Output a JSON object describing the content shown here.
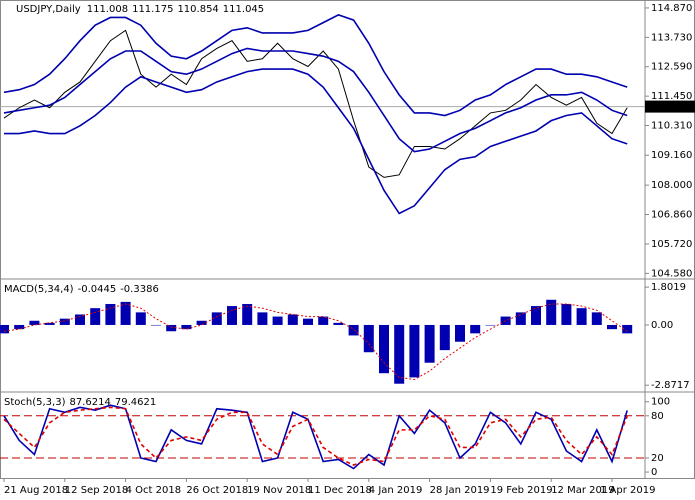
{
  "chart_data": [
    {
      "type": "line",
      "title": "USDJPY,Daily",
      "ohlc": [
        111.008,
        111.175,
        110.854,
        111.045
      ],
      "last_price": 111.045,
      "ylim": [
        104.4,
        115.1
      ],
      "yticks": [
        {
          "value": 114.87,
          "label": "114.870"
        },
        {
          "value": 113.73,
          "label": "113.730"
        },
        {
          "value": 112.59,
          "label": "112.590"
        },
        {
          "value": 111.45,
          "label": "111.450"
        },
        {
          "value": 110.31,
          "label": "110.310"
        },
        {
          "value": 109.16,
          "label": "109.160"
        },
        {
          "value": 108,
          "label": "108.000"
        },
        {
          "value": 106.86,
          "label": "106.860"
        },
        {
          "value": 105.72,
          "label": "105.720"
        },
        {
          "value": 104.58,
          "label": "104.580"
        }
      ],
      "series": [
        {
          "color": "#000000",
          "values": [
            110.6,
            111.0,
            111.3,
            111.0,
            111.6,
            112.0,
            112.8,
            113.6,
            114.0,
            112.3,
            111.8,
            112.3,
            111.9,
            112.9,
            113.3,
            113.6,
            112.8,
            112.9,
            113.5,
            112.9,
            112.6,
            113.2,
            112.5,
            110.5,
            108.7,
            108.3,
            108.4,
            109.5,
            109.5,
            109.4,
            109.8,
            110.3,
            110.8,
            110.9,
            111.3,
            111.9,
            111.4,
            111.1,
            111.4,
            110.4,
            110.0,
            111.0
          ]
        },
        {
          "color": "#0000b0",
          "values": [
            111.6,
            111.7,
            111.9,
            112.3,
            112.9,
            113.6,
            114.2,
            114.5,
            114.5,
            114.2,
            113.5,
            113.0,
            112.9,
            113.2,
            113.6,
            114.0,
            114.1,
            113.9,
            113.9,
            113.9,
            114.0,
            114.3,
            114.6,
            114.4,
            113.5,
            112.4,
            111.5,
            110.8,
            110.8,
            110.7,
            110.9,
            111.3,
            111.5,
            111.9,
            112.2,
            112.5,
            112.5,
            112.3,
            112.3,
            112.2,
            112.0,
            111.8
          ]
        },
        {
          "color": "#0000b0",
          "values": [
            110.8,
            110.9,
            111.0,
            111.1,
            111.4,
            111.9,
            112.4,
            112.9,
            113.2,
            113.2,
            112.8,
            112.4,
            112.3,
            112.5,
            112.8,
            113.1,
            113.3,
            113.2,
            113.2,
            113.2,
            113.1,
            113.0,
            112.8,
            112.4,
            111.6,
            110.7,
            109.8,
            109.3,
            109.4,
            109.7,
            110.0,
            110.2,
            110.5,
            110.8,
            111.0,
            111.3,
            111.5,
            111.5,
            111.6,
            111.3,
            110.9,
            110.7
          ]
        },
        {
          "color": "#0000b0",
          "values": [
            110.0,
            110.0,
            110.1,
            110.0,
            110.0,
            110.3,
            110.7,
            111.2,
            111.8,
            112.2,
            112.0,
            111.8,
            111.6,
            111.7,
            112.0,
            112.2,
            112.4,
            112.5,
            112.5,
            112.5,
            112.3,
            111.8,
            111.0,
            110.2,
            109.0,
            107.8,
            106.9,
            107.2,
            107.9,
            108.6,
            109.0,
            109.1,
            109.5,
            109.7,
            109.9,
            110.1,
            110.5,
            110.7,
            110.8,
            110.3,
            109.8,
            109.6
          ]
        }
      ]
    },
    {
      "type": "bar",
      "title": "MACD(5,34,4)",
      "readout": [
        -0.0445,
        -0.3386
      ],
      "ylim": [
        -3.1,
        2.0
      ],
      "yticks": [
        1.8019,
        {
          "value": 0,
          "label": "0.00"
        },
        -2.8717
      ],
      "series": [
        {
          "color": "#0000b0",
          "values": [
            -0.4,
            -0.2,
            0.2,
            0.1,
            0.3,
            0.5,
            0.8,
            1.0,
            1.1,
            0.6,
            0.0,
            -0.3,
            -0.2,
            0.2,
            0.6,
            0.9,
            1.0,
            0.6,
            0.4,
            0.5,
            0.3,
            0.4,
            0.1,
            -0.5,
            -1.3,
            -2.3,
            -2.8,
            -2.5,
            -1.8,
            -1.2,
            -0.8,
            -0.4,
            0.0,
            0.4,
            0.6,
            0.9,
            1.2,
            1.0,
            0.8,
            0.6,
            -0.2,
            -0.4
          ]
        },
        {
          "color": "#e00000",
          "values": [
            -0.3,
            -0.2,
            0.0,
            0.1,
            0.2,
            0.4,
            0.6,
            0.8,
            1.0,
            0.8,
            0.3,
            -0.1,
            -0.2,
            0.0,
            0.4,
            0.7,
            0.9,
            0.8,
            0.6,
            0.5,
            0.4,
            0.4,
            0.2,
            -0.2,
            -0.9,
            -1.8,
            -2.5,
            -2.6,
            -2.2,
            -1.6,
            -1.1,
            -0.6,
            -0.2,
            0.2,
            0.5,
            0.8,
            1.0,
            1.0,
            0.9,
            0.7,
            0.2,
            -0.3
          ]
        }
      ]
    },
    {
      "type": "line",
      "title": "Stoch(5,3,3)",
      "readout": [
        87.6214,
        79.4621
      ],
      "ylim": [
        -7,
        111
      ],
      "yticks": [
        100,
        80,
        20,
        0
      ],
      "levels": [
        80,
        20
      ],
      "level_color": "#c00000",
      "categories": [
        "21 Aug 2018",
        null,
        null,
        null,
        "12 Sep 2018",
        null,
        null,
        null,
        "4 Oct 2018",
        null,
        null,
        null,
        "26 Oct 2018",
        null,
        null,
        null,
        "19 Nov 2018",
        null,
        null,
        null,
        "11 Dec 2018",
        null,
        null,
        null,
        "4 Jan 2019",
        null,
        null,
        null,
        "28 Jan 2019",
        null,
        null,
        null,
        "19 Feb 2019",
        null,
        null,
        null,
        "12 Mar 2019",
        null,
        null,
        null,
        "1 Apr 2019",
        null
      ],
      "series": [
        {
          "color": "#0000b0",
          "values": [
            80,
            45,
            25,
            90,
            85,
            92,
            88,
            95,
            90,
            20,
            15,
            60,
            45,
            40,
            90,
            88,
            85,
            15,
            20,
            85,
            75,
            15,
            18,
            5,
            25,
            10,
            80,
            55,
            88,
            70,
            20,
            40,
            85,
            70,
            40,
            85,
            75,
            30,
            15,
            60,
            15,
            87.6214
          ]
        },
        {
          "color": "#e00000",
          "values": [
            75,
            55,
            35,
            70,
            85,
            88,
            90,
            92,
            90,
            40,
            20,
            45,
            50,
            45,
            75,
            85,
            85,
            40,
            25,
            65,
            75,
            35,
            20,
            10,
            18,
            15,
            60,
            60,
            80,
            75,
            35,
            35,
            70,
            75,
            50,
            75,
            78,
            45,
            25,
            50,
            25,
            79.4621
          ]
        }
      ]
    }
  ]
}
